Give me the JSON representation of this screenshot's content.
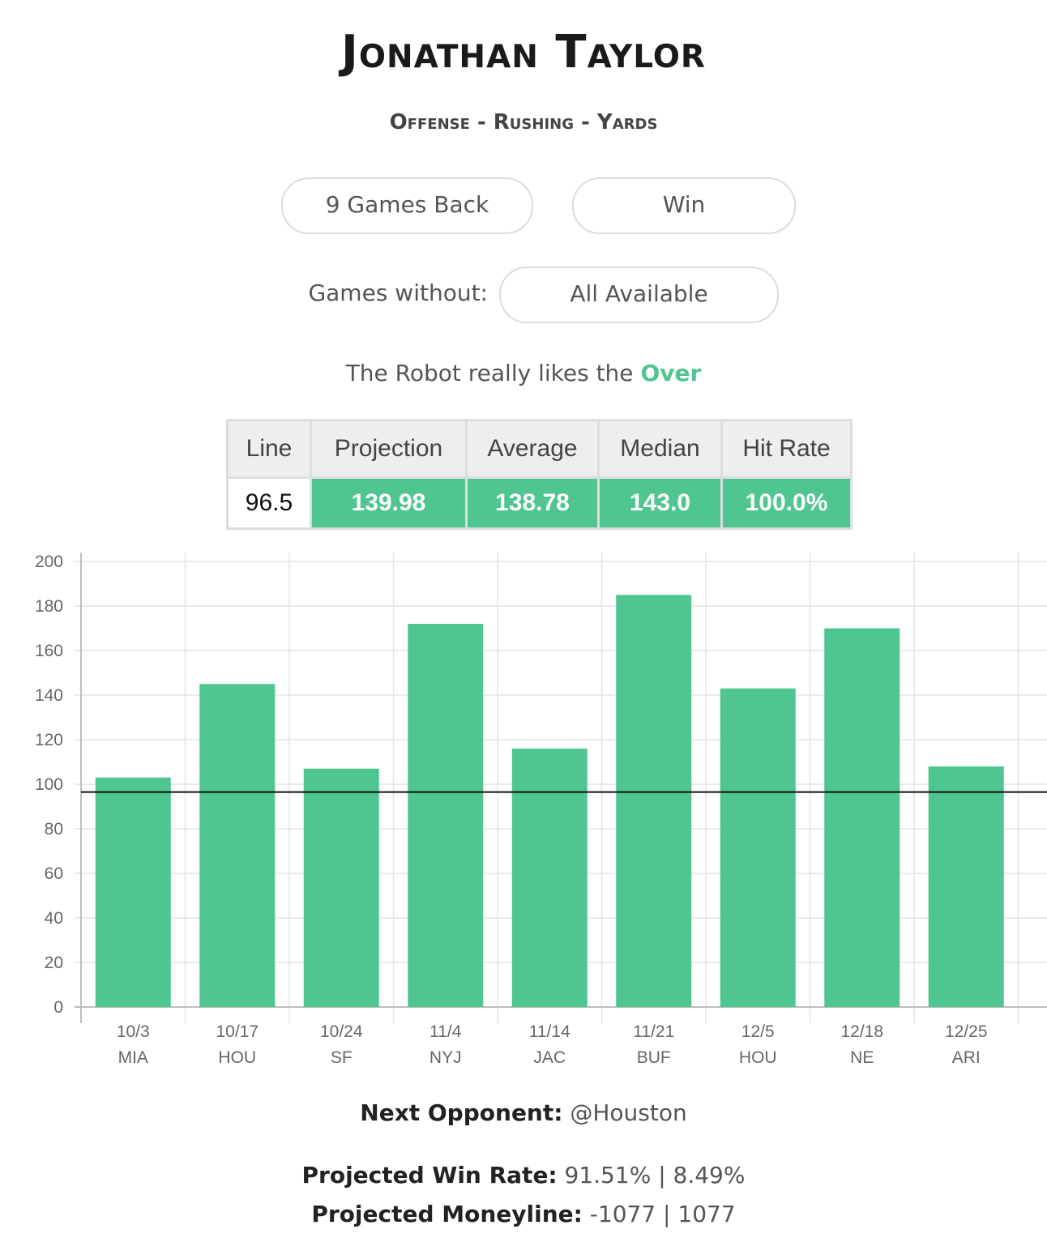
{
  "player": {
    "name": "Jonathan Taylor"
  },
  "category": "Offense - Rushing - Yards",
  "filters": {
    "games_back": "9 Games Back",
    "result": "Win",
    "without_label": "Games without:",
    "without_value": "All Available"
  },
  "robot": {
    "prefix": "The Robot really likes the",
    "pick": "Over",
    "pick_color": "#4fc58f"
  },
  "stats_table": {
    "headers": [
      "Line",
      "Projection",
      "Average",
      "Median",
      "Hit Rate"
    ],
    "values": [
      "96.5",
      "139.98",
      "138.78",
      "143.0",
      "100.0%"
    ]
  },
  "chart_data": {
    "type": "bar",
    "categories": [
      [
        "10/3",
        "MIA"
      ],
      [
        "10/17",
        "HOU"
      ],
      [
        "10/24",
        "SF"
      ],
      [
        "11/4",
        "NYJ"
      ],
      [
        "11/14",
        "JAC"
      ],
      [
        "11/21",
        "BUF"
      ],
      [
        "12/5",
        "HOU"
      ],
      [
        "12/18",
        "NE"
      ],
      [
        "12/25",
        "ARI"
      ]
    ],
    "values": [
      103,
      145,
      107,
      172,
      116,
      185,
      143,
      170,
      108
    ],
    "reference_line": 96.5,
    "ylim": [
      0,
      200
    ],
    "yticks": [
      0,
      20,
      40,
      60,
      80,
      100,
      120,
      140,
      160,
      180,
      200
    ],
    "bar_color": "#4fc58f",
    "grid": true
  },
  "next_opponent": {
    "label": "Next Opponent:",
    "value": "@Houston"
  },
  "win_rate": {
    "label": "Projected Win Rate:",
    "value": "91.51% | 8.49%"
  },
  "moneyline": {
    "label": "Projected Moneyline:",
    "value": "-1077 | 1077"
  }
}
